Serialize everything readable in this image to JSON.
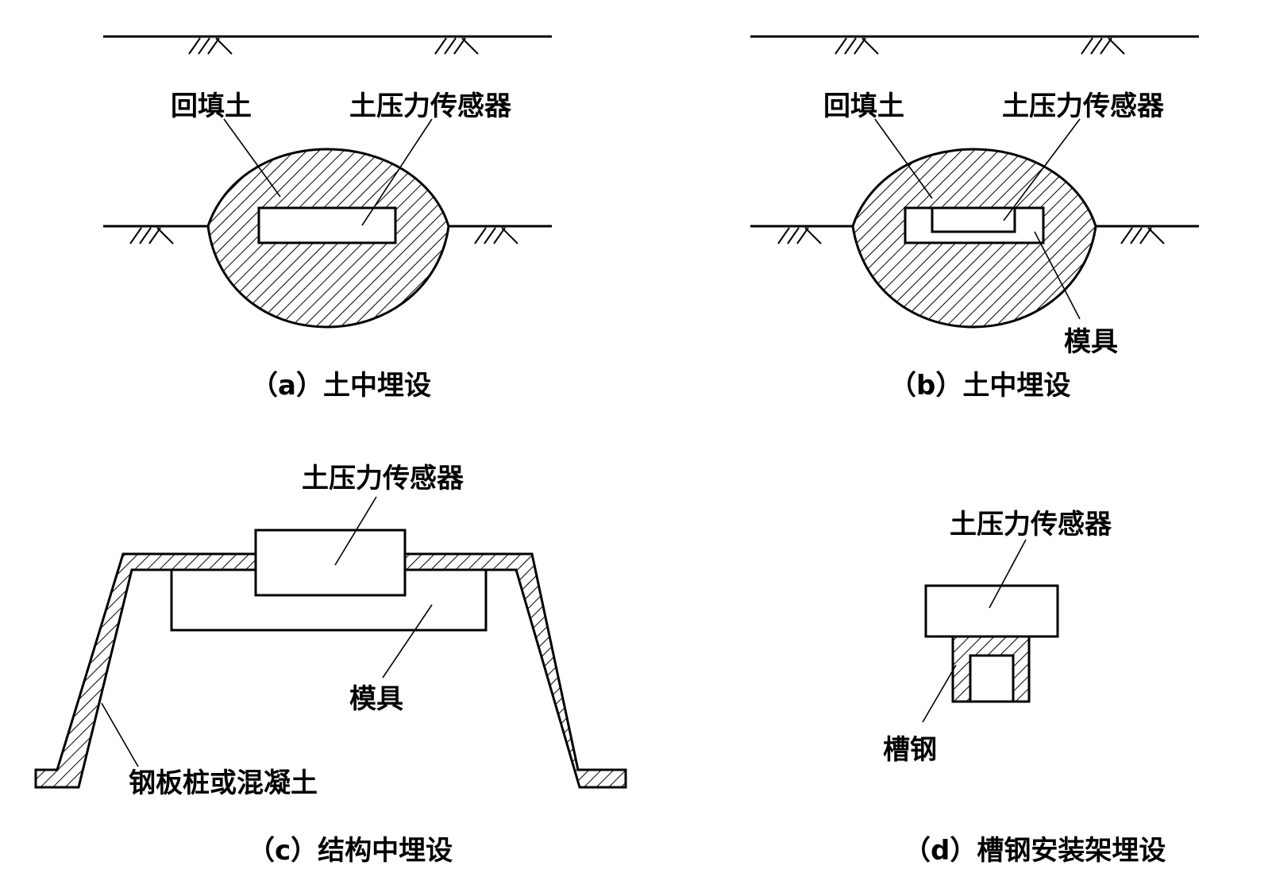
{
  "panels": {
    "a": {
      "caption": "（a）土中埋设",
      "labels": {
        "backfill": "回填土",
        "sensor": "土压力传感器"
      }
    },
    "b": {
      "caption": "（b）土中埋设",
      "labels": {
        "backfill": "回填土",
        "sensor": "土压力传感器",
        "mold": "模具"
      }
    },
    "c": {
      "caption": "（c）结构中埋设",
      "labels": {
        "sensor": "土压力传感器",
        "mold": "模具",
        "pile": "钢板桩或混凝土"
      }
    },
    "d": {
      "caption": "（d）槽钢安装架埋设",
      "labels": {
        "sensor": "土压力传感器",
        "channel": "槽钢"
      }
    }
  },
  "colors": {
    "ink": "#000000",
    "background": "#ffffff"
  }
}
